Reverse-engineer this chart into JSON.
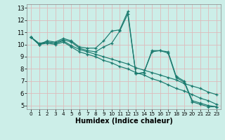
{
  "xlabel": "Humidex (Indice chaleur)",
  "background_color": "#cceee8",
  "grid_color": "#ddbbbb",
  "line_color": "#1a7a6e",
  "xlim": [
    -0.5,
    23.5
  ],
  "ylim": [
    4.7,
    13.3
  ],
  "xticks": [
    0,
    1,
    2,
    3,
    4,
    5,
    6,
    7,
    8,
    9,
    10,
    11,
    12,
    13,
    14,
    15,
    16,
    17,
    18,
    19,
    20,
    21,
    22,
    23
  ],
  "yticks": [
    5,
    6,
    7,
    8,
    9,
    10,
    11,
    12,
    13
  ],
  "series": [
    [
      10.6,
      10.0,
      10.3,
      10.2,
      10.5,
      10.3,
      9.8,
      9.7,
      9.7,
      10.3,
      11.1,
      11.2,
      12.7,
      7.6,
      7.7,
      9.5,
      9.5,
      9.4,
      7.4,
      7.0,
      5.4,
      5.2,
      5.0,
      4.9
    ],
    [
      10.6,
      10.0,
      10.2,
      10.1,
      10.4,
      10.2,
      9.7,
      9.5,
      9.4,
      9.8,
      10.1,
      11.1,
      12.5,
      7.6,
      7.7,
      9.4,
      9.5,
      9.3,
      7.3,
      6.9,
      5.3,
      5.1,
      4.9,
      4.9
    ],
    [
      10.6,
      10.1,
      10.2,
      10.1,
      10.3,
      9.9,
      9.6,
      9.4,
      9.2,
      9.0,
      8.8,
      8.6,
      8.4,
      8.1,
      7.9,
      7.7,
      7.5,
      7.3,
      7.1,
      6.8,
      6.6,
      6.4,
      6.1,
      5.9
    ],
    [
      10.6,
      10.0,
      10.1,
      10.0,
      10.2,
      9.8,
      9.4,
      9.2,
      9.0,
      8.7,
      8.5,
      8.2,
      8.0,
      7.7,
      7.5,
      7.2,
      7.0,
      6.7,
      6.4,
      6.2,
      5.9,
      5.6,
      5.4,
      5.1
    ]
  ]
}
